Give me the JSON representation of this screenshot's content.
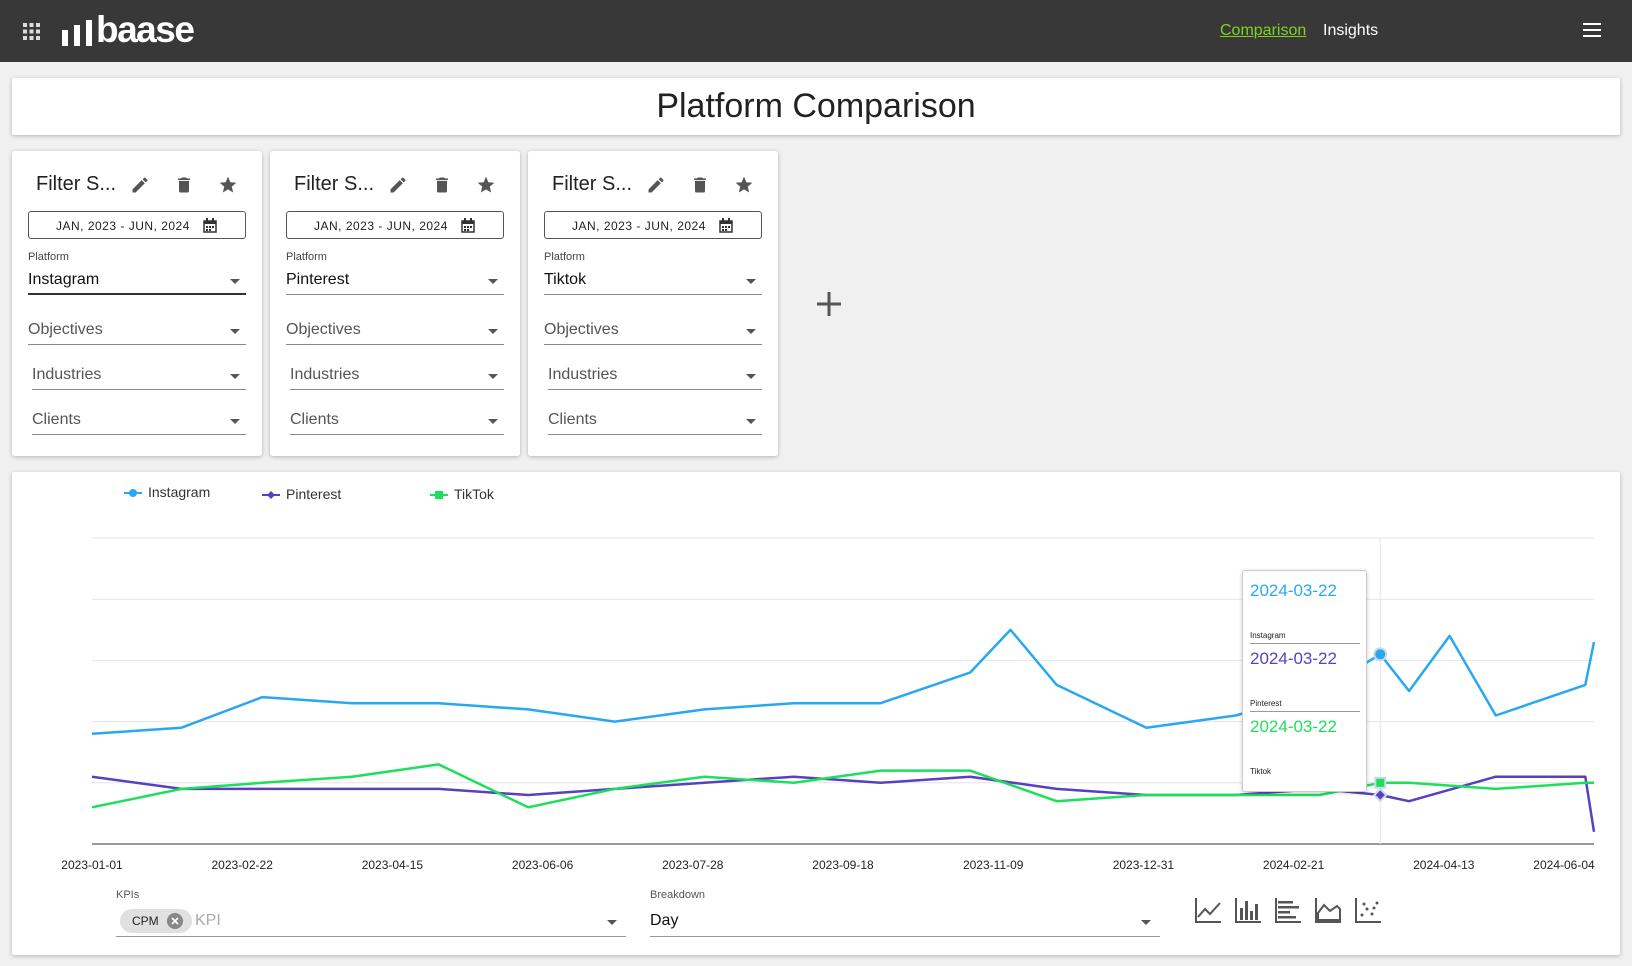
{
  "header": {
    "logo_text": "baase",
    "nav": [
      {
        "label": "Comparison",
        "active": true
      },
      {
        "label": "Insights",
        "active": false
      }
    ]
  },
  "page_title": "Platform Comparison",
  "filter_sets": [
    {
      "title": "Filter S...",
      "date_range": "JAN, 2023 - JUN, 2024",
      "platform_label": "Platform",
      "platform": "Instagram",
      "objectives": "Objectives",
      "industries": "Industries",
      "clients": "Clients"
    },
    {
      "title": "Filter S...",
      "date_range": "JAN, 2023 - JUN, 2024",
      "platform_label": "Platform",
      "platform": "Pinterest",
      "objectives": "Objectives",
      "industries": "Industries",
      "clients": "Clients"
    },
    {
      "title": "Filter S...",
      "date_range": "JAN, 2023 - JUN, 2024",
      "platform_label": "Platform",
      "platform": "Tiktok",
      "objectives": "Objectives",
      "industries": "Industries",
      "clients": "Clients"
    }
  ],
  "chart_data": {
    "type": "line",
    "x_tick_labels": [
      "2023-01-01",
      "2023-02-22",
      "2023-04-15",
      "2023-06-06",
      "2023-07-28",
      "2023-09-18",
      "2023-11-09",
      "2023-12-31",
      "2024-02-21",
      "2024-04-13",
      "2024-06-04"
    ],
    "x_range": [
      "2023-01-01",
      "2024-06-04"
    ],
    "y_range": [
      0,
      5
    ],
    "grid": "horizontal",
    "legend_position": "top-left",
    "series": [
      {
        "name": "Instagram",
        "color": "#29a8f2",
        "marker": "circle",
        "x": [
          "2023-01-01",
          "2023-02-01",
          "2023-03-01",
          "2023-04-01",
          "2023-05-01",
          "2023-06-01",
          "2023-07-01",
          "2023-08-01",
          "2023-09-01",
          "2023-10-01",
          "2023-11-01",
          "2023-11-15",
          "2023-12-01",
          "2024-01-01",
          "2024-02-01",
          "2024-03-01",
          "2024-03-22",
          "2024-04-01",
          "2024-04-15",
          "2024-05-01",
          "2024-06-01",
          "2024-06-04"
        ],
        "values": [
          1.8,
          1.9,
          2.4,
          2.3,
          2.3,
          2.2,
          2.0,
          2.2,
          2.3,
          2.3,
          2.8,
          3.5,
          2.6,
          1.9,
          2.1,
          2.5,
          3.1,
          2.5,
          3.4,
          2.1,
          2.6,
          3.3
        ]
      },
      {
        "name": "Pinterest",
        "color": "#5a3fc0",
        "marker": "diamond",
        "x": [
          "2023-01-01",
          "2023-02-01",
          "2023-03-01",
          "2023-04-01",
          "2023-05-01",
          "2023-06-01",
          "2023-07-01",
          "2023-08-01",
          "2023-09-01",
          "2023-10-01",
          "2023-11-01",
          "2023-12-01",
          "2024-01-01",
          "2024-02-01",
          "2024-03-01",
          "2024-03-22",
          "2024-04-01",
          "2024-05-01",
          "2024-06-01",
          "2024-06-04"
        ],
        "values": [
          1.1,
          0.9,
          0.9,
          0.9,
          0.9,
          0.8,
          0.9,
          1.0,
          1.1,
          1.0,
          1.1,
          0.9,
          0.8,
          0.8,
          0.9,
          0.8,
          0.7,
          1.1,
          1.1,
          0.2
        ]
      },
      {
        "name": "TikTok",
        "color": "#1ce05c",
        "marker": "square",
        "x": [
          "2023-01-01",
          "2023-02-01",
          "2023-03-01",
          "2023-04-01",
          "2023-05-01",
          "2023-06-01",
          "2023-07-01",
          "2023-08-01",
          "2023-09-01",
          "2023-10-01",
          "2023-11-01",
          "2023-12-01",
          "2024-01-01",
          "2024-02-01",
          "2024-03-01",
          "2024-03-22",
          "2024-04-01",
          "2024-05-01",
          "2024-06-01",
          "2024-06-04"
        ],
        "values": [
          0.6,
          0.9,
          1.0,
          1.1,
          1.3,
          0.6,
          0.9,
          1.1,
          1.0,
          1.2,
          1.2,
          0.7,
          0.8,
          0.8,
          0.8,
          1.0,
          1.0,
          0.9,
          1.0,
          1.0
        ]
      }
    ]
  },
  "tooltip": {
    "entries": [
      {
        "date": "2024-03-22",
        "name": "Instagram",
        "color": "#29a8f2"
      },
      {
        "date": "2024-03-22",
        "name": "Pinterest",
        "color": "#5a3fc0"
      },
      {
        "date": "2024-03-22",
        "name": "Tiktok",
        "color": "#1ce05c"
      }
    ]
  },
  "controls": {
    "kpis_label": "KPIs",
    "kpi_chip": "CPM",
    "kpi_placeholder": "KPI",
    "breakdown_label": "Breakdown",
    "breakdown_value": "Day",
    "chart_types": [
      "line-chart-icon",
      "bar-chart-icon",
      "horizontal-bar-icon",
      "area-chart-icon",
      "scatter-chart-icon"
    ]
  },
  "colors": {
    "accent": "#7ed321",
    "topbar": "#383838"
  }
}
